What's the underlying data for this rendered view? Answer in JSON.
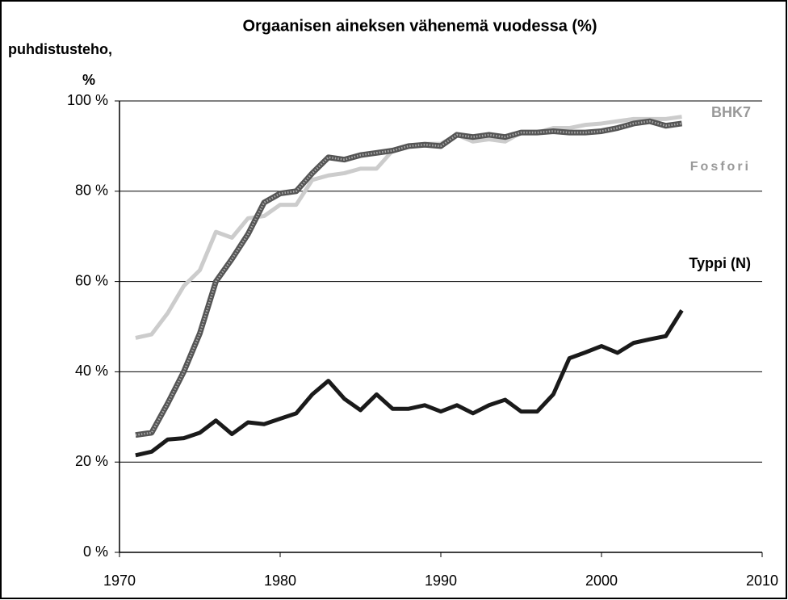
{
  "chart_data": {
    "type": "line",
    "title": "Orgaanisen aineksen vähenemä vuodessa (%)",
    "y_label": [
      "puhdistusteho,",
      "%"
    ],
    "x": [
      1971,
      1972,
      1973,
      1974,
      1975,
      1976,
      1977,
      1978,
      1979,
      1980,
      1981,
      1982,
      1983,
      1984,
      1985,
      1986,
      1987,
      1988,
      1989,
      1990,
      1991,
      1992,
      1993,
      1994,
      1995,
      1996,
      1997,
      1998,
      1999,
      2000,
      2001,
      2002,
      2003,
      2004,
      2005
    ],
    "series": [
      {
        "name": "Fosfori",
        "color": "#cccccc",
        "values": [
          47.5,
          48.3,
          53,
          59,
          62.5,
          71,
          69.7,
          74,
          74.5,
          77,
          77,
          82.5,
          83.5,
          84,
          85,
          85,
          89,
          90,
          90.5,
          90.5,
          92.5,
          91,
          91.5,
          91,
          93,
          93,
          94,
          94,
          94.7,
          95,
          95.5,
          96,
          96,
          96,
          96.5
        ]
      },
      {
        "name": "BHK7",
        "color": "#555555",
        "values": [
          26,
          26.5,
          33,
          40,
          48.5,
          60,
          65,
          70.5,
          77.5,
          79.5,
          80,
          84,
          87.5,
          87,
          88,
          88.5,
          89,
          90,
          90.3,
          90,
          92.5,
          92,
          92.5,
          92,
          93,
          93,
          93.3,
          93,
          93,
          93.3,
          94,
          95,
          95.5,
          94.5,
          95
        ]
      },
      {
        "name": "Typpi (N)",
        "color": "#1a1a1a",
        "values": [
          21.5,
          22.3,
          25,
          25.3,
          26.5,
          29.2,
          26.2,
          28.8,
          28.4,
          29.6,
          30.8,
          35,
          38,
          34,
          31.5,
          35,
          31.8,
          31.8,
          32.6,
          31.2,
          32.6,
          30.8,
          32.6,
          33.8,
          31.2,
          31.2,
          35,
          43,
          44.3,
          45.7,
          44.2,
          46.4,
          47.2,
          47.9,
          53.6
        ]
      }
    ],
    "xlim": [
      1970,
      2010
    ],
    "xticks": [
      1970,
      1980,
      1990,
      2000,
      2010
    ],
    "ylim": [
      0,
      100
    ],
    "yticks": [
      {
        "value": 0,
        "label": "0 %"
      },
      {
        "value": 20,
        "label": "20 %"
      },
      {
        "value": 40,
        "label": "40 %"
      },
      {
        "value": 60,
        "label": "60 %"
      },
      {
        "value": 80,
        "label": "80 %"
      },
      {
        "value": 100,
        "label": "100 %"
      }
    ],
    "grid": true
  }
}
